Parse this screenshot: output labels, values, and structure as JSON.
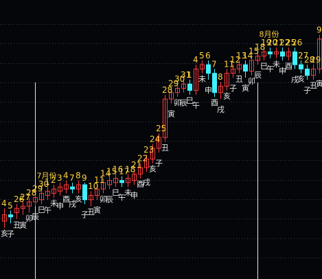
{
  "chart_data": {
    "type": "candlestick",
    "title": "",
    "grid": true,
    "colors": {
      "background": "#05060a",
      "grid": "#3a4250",
      "up": "#ff3b3b",
      "down": "#3ff0ff",
      "day_label": "#ffd23c",
      "branch_label": "#e8e8e8",
      "month_marker": "#e8e8e8"
    },
    "price_range": [
      0,
      100
    ],
    "month_markers": [
      {
        "label": "7月份",
        "at_index": 5
      },
      {
        "label": "8月份",
        "at_index": 41
      }
    ],
    "candles": [
      {
        "day": "4",
        "open": 9,
        "close": 12,
        "high": 15,
        "low": 6,
        "branch": "亥"
      },
      {
        "day": "5",
        "open": 12,
        "close": 11,
        "high": 14,
        "low": 8,
        "branch": "子"
      },
      {
        "day": "26",
        "open": 13,
        "close": 15,
        "high": 17,
        "low": 10,
        "branch": "丑"
      },
      {
        "day": "27",
        "open": 15,
        "close": 16,
        "high": 18,
        "low": 12,
        "branch": "寅"
      },
      {
        "day": "28",
        "open": 16,
        "close": 18,
        "high": 20,
        "low": 13,
        "branch": "卯"
      },
      {
        "day": "29",
        "open": 18,
        "close": 20,
        "high": 22,
        "low": 16,
        "branch": "辰"
      },
      {
        "day": "30",
        "open": 19,
        "close": 22,
        "high": 24,
        "low": 17,
        "branch": "巳"
      },
      {
        "day": "1",
        "open": 21,
        "close": 23,
        "high": 25,
        "low": 19,
        "branch": "午"
      },
      {
        "day": "2",
        "open": 22,
        "close": 24,
        "high": 26,
        "low": 20,
        "branch": "未"
      },
      {
        "day": "3",
        "open": 23,
        "close": 25,
        "high": 27,
        "low": 21,
        "branch": "申"
      },
      {
        "day": "4",
        "open": 24,
        "close": 26,
        "high": 28,
        "low": 22,
        "branch": "酉"
      },
      {
        "day": "7",
        "open": 25,
        "close": 24,
        "high": 27,
        "low": 22,
        "branch": "戌"
      },
      {
        "day": "8",
        "open": 24,
        "close": 26,
        "high": 28,
        "low": 22,
        "branch": "亥"
      },
      {
        "day": "9",
        "open": 26,
        "close": 19,
        "high": 27,
        "low": 17,
        "branch": "子"
      },
      {
        "day": "10",
        "open": 19,
        "close": 21,
        "high": 23,
        "low": 16,
        "branch": "丑"
      },
      {
        "day": "11",
        "open": 21,
        "close": 24,
        "high": 26,
        "low": 19,
        "branch": "寅"
      },
      {
        "day": "14",
        "open": 24,
        "close": 27,
        "high": 29,
        "low": 22,
        "branch": "卯"
      },
      {
        "day": "15",
        "open": 26,
        "close": 28,
        "high": 30,
        "low": 24,
        "branch": "辰"
      },
      {
        "day": "16",
        "open": 27,
        "close": 29,
        "high": 31,
        "low": 25,
        "branch": "巳"
      },
      {
        "day": "17",
        "open": 28,
        "close": 27,
        "high": 30,
        "low": 25,
        "branch": "午"
      },
      {
        "day": "18",
        "open": 27,
        "close": 29,
        "high": 31,
        "low": 25,
        "branch": "未"
      },
      {
        "day": "21",
        "open": 28,
        "close": 31,
        "high": 33,
        "low": 26,
        "branch": "申"
      },
      {
        "day": "22",
        "open": 31,
        "close": 34,
        "high": 36,
        "low": 29,
        "branch": "酉"
      },
      {
        "day": "23",
        "open": 34,
        "close": 38,
        "high": 40,
        "low": 32,
        "branch": "戌"
      },
      {
        "day": "24",
        "open": 38,
        "close": 43,
        "high": 45,
        "low": 36,
        "branch": "亥"
      },
      {
        "day": "25",
        "open": 43,
        "close": 48,
        "high": 50,
        "low": 41,
        "branch": "子"
      },
      {
        "day": "28",
        "open": 48,
        "close": 66,
        "high": 68,
        "low": 46,
        "branch": "丑"
      },
      {
        "day": "29",
        "open": 66,
        "close": 69,
        "high": 71,
        "low": 64,
        "branch": "寅"
      },
      {
        "day": "30",
        "open": 69,
        "close": 71,
        "high": 73,
        "low": 67,
        "branch": "卯"
      },
      {
        "day": "31",
        "open": 71,
        "close": 73,
        "high": 75,
        "low": 69,
        "branch": "辰"
      },
      {
        "day": "1",
        "open": 73,
        "close": 70,
        "high": 75,
        "low": 68,
        "branch": "巳"
      },
      {
        "day": "4",
        "open": 70,
        "close": 80,
        "high": 82,
        "low": 68,
        "branch": "午"
      },
      {
        "day": "5",
        "open": 80,
        "close": 82,
        "high": 84,
        "low": 78,
        "branch": "未"
      },
      {
        "day": "6",
        "open": 82,
        "close": 78,
        "high": 84,
        "low": 75,
        "branch": "申"
      },
      {
        "day": "7",
        "open": 78,
        "close": 69,
        "high": 80,
        "low": 67,
        "branch": "酉"
      },
      {
        "day": "8",
        "open": 69,
        "close": 72,
        "high": 74,
        "low": 66,
        "branch": "戌"
      },
      {
        "day": "11",
        "open": 72,
        "close": 78,
        "high": 80,
        "low": 70,
        "branch": "亥"
      },
      {
        "day": "12",
        "open": 78,
        "close": 80,
        "high": 82,
        "low": 76,
        "branch": "子"
      },
      {
        "day": "13",
        "open": 80,
        "close": 82,
        "high": 84,
        "low": 78,
        "branch": "丑"
      },
      {
        "day": "14",
        "open": 82,
        "close": 79,
        "high": 84,
        "low": 76,
        "branch": "寅"
      },
      {
        "day": "15",
        "open": 79,
        "close": 84,
        "high": 86,
        "low": 77,
        "branch": "卯"
      },
      {
        "day": "18",
        "open": 84,
        "close": 86,
        "high": 88,
        "low": 82,
        "branch": "辰"
      },
      {
        "day": "19",
        "open": 86,
        "close": 88,
        "high": 90,
        "low": 84,
        "branch": "巳"
      },
      {
        "day": "20",
        "open": 88,
        "close": 87,
        "high": 90,
        "low": 85,
        "branch": "午"
      },
      {
        "day": "21",
        "open": 87,
        "close": 88,
        "high": 90,
        "low": 85,
        "branch": "未"
      },
      {
        "day": "22",
        "open": 88,
        "close": 86,
        "high": 90,
        "low": 84,
        "branch": "申"
      },
      {
        "day": "25",
        "open": 86,
        "close": 88,
        "high": 90,
        "low": 84,
        "branch": "酉"
      },
      {
        "day": "26",
        "open": 88,
        "close": 82,
        "high": 90,
        "low": 80,
        "branch": "戌"
      },
      {
        "day": "27",
        "open": 82,
        "close": 80,
        "high": 84,
        "low": 78,
        "branch": "亥"
      },
      {
        "day": "28",
        "open": 80,
        "close": 77,
        "high": 82,
        "low": 75,
        "branch": "子"
      },
      {
        "day": "29",
        "open": 77,
        "close": 80,
        "high": 82,
        "low": 75,
        "branch": "丑"
      },
      {
        "day": "9",
        "open": 80,
        "close": 94,
        "high": 96,
        "low": 78,
        "branch": "寅"
      }
    ]
  }
}
